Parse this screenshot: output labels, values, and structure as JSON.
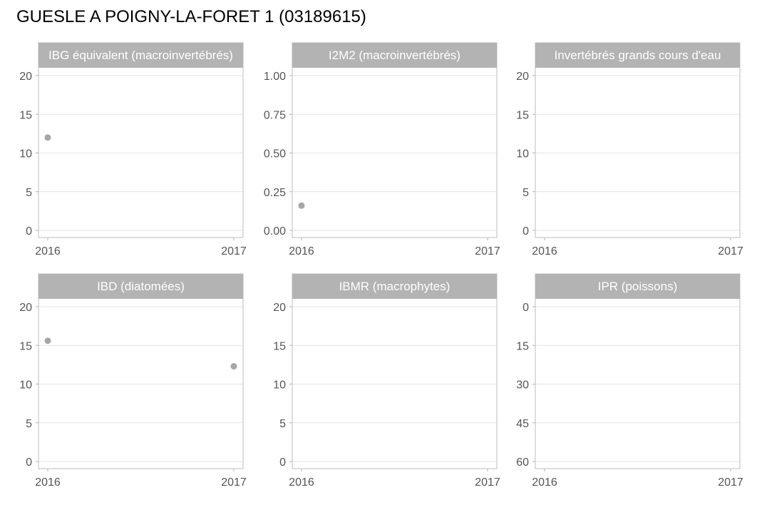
{
  "title": "GUESLE A POIGNY-LA-FORET 1 (03189615)",
  "chart_data": {
    "type": "scatter",
    "layout": "facet-grid-2x3",
    "colors": {
      "point": "#a6a6a6",
      "strip": "#b3b3b3",
      "grid": "#e3e3e3"
    },
    "panels": [
      {
        "title": "IBG équivalent (macroinvertébrés)",
        "x_ticks": [
          "2016",
          "2017"
        ],
        "xlim": [
          2016,
          2017
        ],
        "y_ticks": [
          "0",
          "5",
          "10",
          "15",
          "20"
        ],
        "ylim": [
          0,
          20
        ],
        "y_reversed": false,
        "points": [
          {
            "x": 2016,
            "y": 12
          }
        ]
      },
      {
        "title": "I2M2 (macroinvertébrés)",
        "x_ticks": [
          "2016",
          "2017"
        ],
        "xlim": [
          2016,
          2017
        ],
        "y_ticks": [
          "0.00",
          "0.25",
          "0.50",
          "0.75",
          "1.00"
        ],
        "ylim": [
          0,
          1
        ],
        "y_reversed": false,
        "points": [
          {
            "x": 2016,
            "y": 0.16
          }
        ]
      },
      {
        "title": "Invertébrés grands cours d'eau",
        "x_ticks": [
          "2016",
          "2017"
        ],
        "xlim": [
          2016,
          2017
        ],
        "y_ticks": [
          "0",
          "5",
          "10",
          "15",
          "20"
        ],
        "ylim": [
          0,
          20
        ],
        "y_reversed": false,
        "points": []
      },
      {
        "title": "IBD (diatomées)",
        "x_ticks": [
          "2016",
          "2017"
        ],
        "xlim": [
          2016,
          2017
        ],
        "y_ticks": [
          "0",
          "5",
          "10",
          "15",
          "20"
        ],
        "ylim": [
          0,
          20
        ],
        "y_reversed": false,
        "points": [
          {
            "x": 2016,
            "y": 15.6
          },
          {
            "x": 2017,
            "y": 12.3
          }
        ]
      },
      {
        "title": "IBMR (macrophytes)",
        "x_ticks": [
          "2016",
          "2017"
        ],
        "xlim": [
          2016,
          2017
        ],
        "y_ticks": [
          "0",
          "5",
          "10",
          "15",
          "20"
        ],
        "ylim": [
          0,
          20
        ],
        "y_reversed": false,
        "points": []
      },
      {
        "title": "IPR (poissons)",
        "x_ticks": [
          "2016",
          "2017"
        ],
        "xlim": [
          2016,
          2017
        ],
        "y_ticks": [
          "0",
          "15",
          "30",
          "45",
          "60"
        ],
        "ylim": [
          0,
          60
        ],
        "y_reversed": true,
        "points": []
      }
    ]
  }
}
